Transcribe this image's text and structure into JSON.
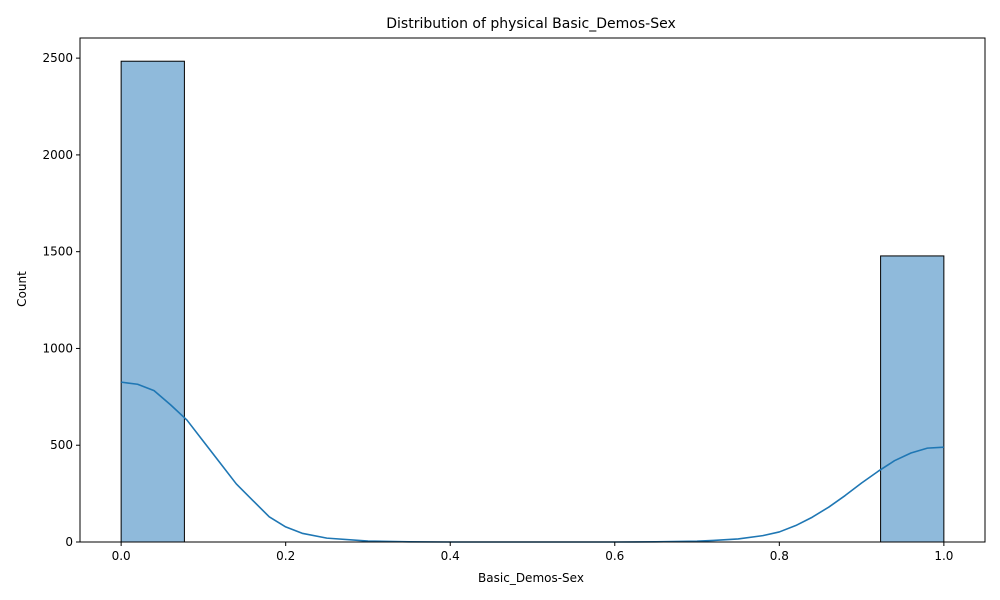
{
  "chart_data": {
    "type": "histogram",
    "title": "Distribution of physical Basic_Demos-Sex",
    "xlabel": "Basic_Demos-Sex",
    "ylabel": "Count",
    "xlim": [
      -0.05,
      1.05
    ],
    "ylim": [
      0,
      2604
    ],
    "x_ticks": [
      0.0,
      0.2,
      0.4,
      0.6,
      0.8,
      1.0
    ],
    "x_tick_labels": [
      "0.0",
      "0.2",
      "0.4",
      "0.6",
      "0.8",
      "1.0"
    ],
    "y_ticks": [
      0,
      500,
      1000,
      1500,
      2000,
      2500
    ],
    "y_tick_labels": [
      "0",
      "500",
      "1000",
      "1500",
      "2000",
      "2500"
    ],
    "bars": [
      {
        "x_start": 0.0,
        "x_end": 0.0769,
        "value": 2484
      },
      {
        "x_start": 0.9231,
        "x_end": 1.0,
        "value": 1478
      }
    ],
    "kde": {
      "x": [
        0.0,
        0.02,
        0.04,
        0.06,
        0.08,
        0.1,
        0.12,
        0.14,
        0.16,
        0.18,
        0.2,
        0.22,
        0.25,
        0.3,
        0.35,
        0.4,
        0.5,
        0.6,
        0.65,
        0.7,
        0.72,
        0.75,
        0.78,
        0.8,
        0.82,
        0.84,
        0.86,
        0.88,
        0.9,
        0.92,
        0.94,
        0.96,
        0.98,
        1.0
      ],
      "y": [
        826,
        815,
        782,
        709,
        630,
        520,
        410,
        300,
        215,
        130,
        78,
        45,
        20,
        5,
        1,
        0,
        0,
        0,
        1,
        4,
        8,
        16,
        33,
        52,
        85,
        128,
        180,
        240,
        305,
        365,
        420,
        460,
        485,
        490
      ]
    },
    "grid": false,
    "colors": {
      "bar_fill": "#8fbadb",
      "bar_edge": "#000000",
      "kde_line": "#1f77b4"
    }
  }
}
